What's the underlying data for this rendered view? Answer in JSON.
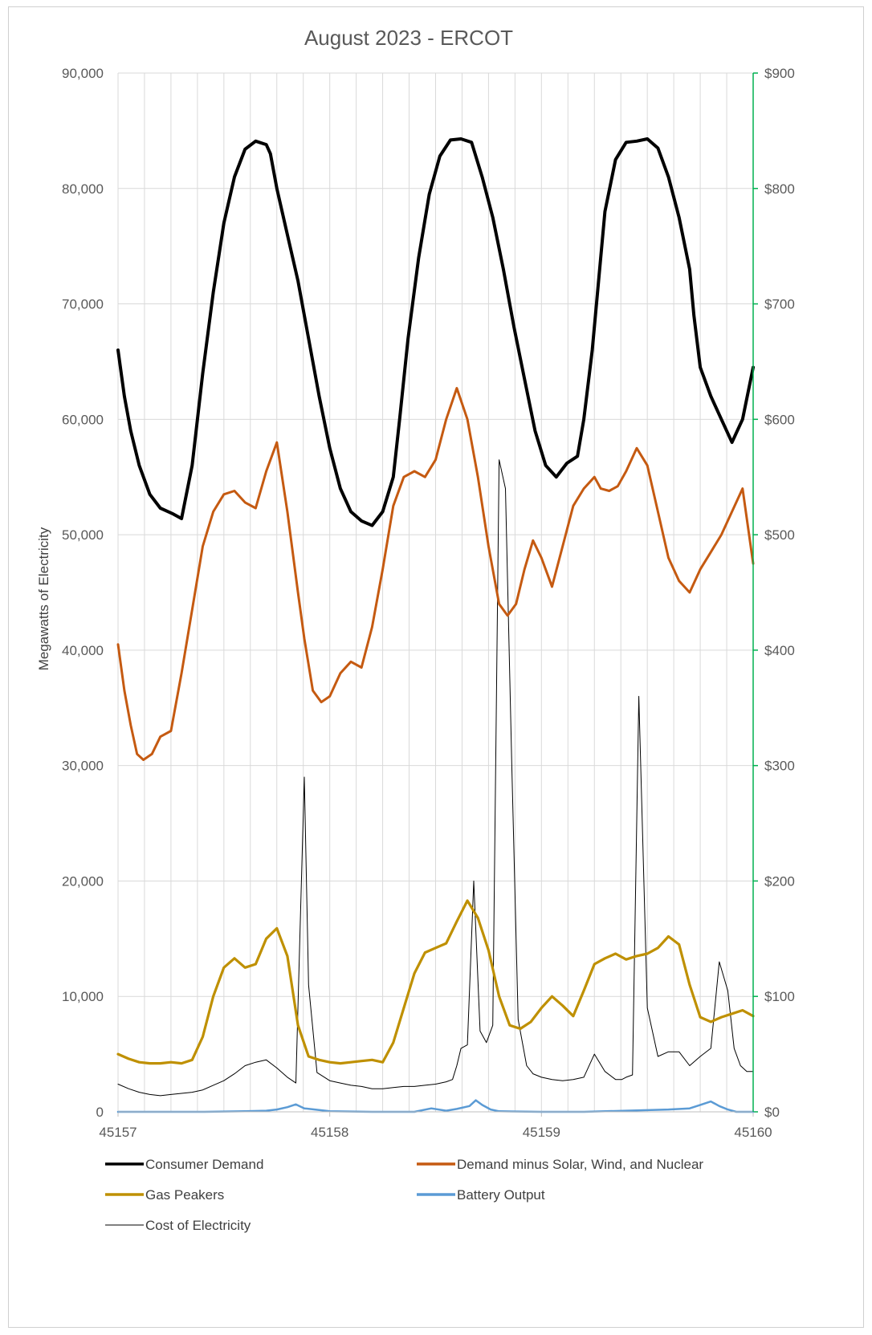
{
  "chart_data": {
    "type": "line",
    "title": "August 2023 - ERCOT",
    "ylabel": "Megawatts of Electricity",
    "y2label": "",
    "xlim": [
      45157,
      45160
    ],
    "ylim": [
      0,
      90000
    ],
    "y2lim": [
      0,
      900
    ],
    "x_ticks": [
      "45157",
      "45158",
      "45159",
      "45160"
    ],
    "y_ticks": [
      "0",
      "10,000",
      "20,000",
      "30,000",
      "40,000",
      "50,000",
      "60,000",
      "70,000",
      "80,000",
      "90,000"
    ],
    "y2_ticks": [
      "$0",
      "$100",
      "$200",
      "$300",
      "$400",
      "$500",
      "$600",
      "$700",
      "$800",
      "$900"
    ],
    "vertical_grid_count": 24,
    "legend_position": "bottom",
    "series": [
      {
        "name": "Consumer Demand",
        "axis": "left",
        "color": "#000000",
        "x": [
          45157,
          45157.03,
          45157.06,
          45157.1,
          45157.15,
          45157.2,
          45157.26,
          45157.3,
          45157.35,
          45157.4,
          45157.45,
          45157.5,
          45157.55,
          45157.6,
          45157.65,
          45157.7,
          45157.72,
          45157.75,
          45157.8,
          45157.85,
          45157.9,
          45157.95,
          45158.0,
          45158.05,
          45158.1,
          45158.15,
          45158.2,
          45158.25,
          45158.3,
          45158.33,
          45158.37,
          45158.42,
          45158.47,
          45158.52,
          45158.57,
          45158.62,
          45158.67,
          45158.72,
          45158.77,
          45158.82,
          45158.87,
          45158.92,
          45158.97,
          45159.02,
          45159.07,
          45159.12,
          45159.17,
          45159.2,
          45159.24,
          45159.27,
          45159.3,
          45159.35,
          45159.4,
          45159.45,
          45159.5,
          45159.55,
          45159.6,
          45159.65,
          45159.7,
          45159.72,
          45159.75,
          45159.8,
          45159.85,
          45159.9,
          45159.95,
          45160.0
        ],
        "y": [
          66000,
          62000,
          59000,
          56000,
          53500,
          52300,
          51800,
          51400,
          56000,
          64000,
          71000,
          77000,
          81000,
          83400,
          84100,
          83800,
          83000,
          80000,
          76000,
          72000,
          67000,
          62000,
          57500,
          54000,
          52000,
          51200,
          50800,
          52000,
          55000,
          60000,
          67000,
          74000,
          79500,
          82800,
          84200,
          84300,
          84000,
          81000,
          77500,
          73000,
          68000,
          63500,
          59000,
          56000,
          55000,
          56200,
          56800,
          60000,
          66000,
          72000,
          78000,
          82500,
          84000,
          84100,
          84300,
          83500,
          81000,
          77500,
          73000,
          69000,
          64500,
          62000,
          60000,
          58000,
          60000,
          64500
        ]
      },
      {
        "name": "Demand minus Solar, Wind, and Nuclear",
        "axis": "left",
        "color": "#C55A11",
        "x": [
          45157,
          45157.03,
          45157.06,
          45157.09,
          45157.12,
          45157.16,
          45157.2,
          45157.25,
          45157.3,
          45157.35,
          45157.4,
          45157.45,
          45157.5,
          45157.55,
          45157.6,
          45157.65,
          45157.7,
          45157.75,
          45157.8,
          45157.85,
          45157.88,
          45157.92,
          45157.96,
          45158.0,
          45158.05,
          45158.1,
          45158.15,
          45158.2,
          45158.25,
          45158.3,
          45158.35,
          45158.4,
          45158.45,
          45158.5,
          45158.55,
          45158.6,
          45158.65,
          45158.7,
          45158.75,
          45158.8,
          45158.84,
          45158.88,
          45158.92,
          45158.96,
          45159.0,
          45159.05,
          45159.1,
          45159.15,
          45159.2,
          45159.25,
          45159.28,
          45159.32,
          45159.36,
          45159.4,
          45159.45,
          45159.5,
          45159.55,
          45159.6,
          45159.65,
          45159.7,
          45159.75,
          45159.8,
          45159.85,
          45159.9,
          45159.95,
          45160.0
        ],
        "y": [
          40500,
          36500,
          33500,
          31000,
          30500,
          31000,
          32500,
          33000,
          38000,
          43500,
          49000,
          52000,
          53500,
          53800,
          52800,
          52300,
          55500,
          58000,
          52000,
          45000,
          41000,
          36500,
          35500,
          36000,
          38000,
          39000,
          38500,
          42000,
          47000,
          52500,
          55000,
          55500,
          55000,
          56500,
          60000,
          62700,
          60000,
          55000,
          49000,
          44000,
          43000,
          44000,
          47000,
          49500,
          48000,
          45500,
          49000,
          52500,
          54000,
          55000,
          54000,
          53800,
          54200,
          55500,
          57500,
          56000,
          52000,
          48000,
          46000,
          45000,
          47000,
          48500,
          50000,
          52000,
          54000,
          47500
        ]
      },
      {
        "name": "Gas Peakers",
        "axis": "left",
        "color": "#BF9000",
        "x": [
          45157,
          45157.05,
          45157.1,
          45157.15,
          45157.2,
          45157.25,
          45157.3,
          45157.35,
          45157.4,
          45157.45,
          45157.5,
          45157.55,
          45157.6,
          45157.65,
          45157.7,
          45157.75,
          45157.8,
          45157.85,
          45157.9,
          45157.95,
          45158.0,
          45158.05,
          45158.1,
          45158.15,
          45158.2,
          45158.25,
          45158.3,
          45158.35,
          45158.4,
          45158.45,
          45158.5,
          45158.55,
          45158.6,
          45158.65,
          45158.7,
          45158.75,
          45158.8,
          45158.85,
          45158.9,
          45158.95,
          45159.0,
          45159.05,
          45159.1,
          45159.15,
          45159.2,
          45159.25,
          45159.3,
          45159.35,
          45159.4,
          45159.45,
          45159.5,
          45159.55,
          45159.6,
          45159.65,
          45159.7,
          45159.75,
          45159.8,
          45159.85,
          45159.9,
          45159.95,
          45160.0
        ],
        "y": [
          5000,
          4600,
          4300,
          4200,
          4200,
          4300,
          4200,
          4500,
          6500,
          10000,
          12500,
          13300,
          12500,
          12800,
          15000,
          15900,
          13500,
          7500,
          4800,
          4500,
          4300,
          4200,
          4300,
          4400,
          4500,
          4300,
          6000,
          9000,
          12000,
          13800,
          14200,
          14600,
          16500,
          18300,
          16800,
          14000,
          10000,
          7500,
          7200,
          7800,
          9000,
          10000,
          9200,
          8300,
          10500,
          12800,
          13300,
          13700,
          13200,
          13500,
          13700,
          14200,
          15200,
          14500,
          11000,
          8200,
          7800,
          8200,
          8500,
          8800,
          8300
        ]
      },
      {
        "name": "Battery Output",
        "axis": "left",
        "color": "#5B9BD5",
        "x": [
          45157,
          45157.2,
          45157.4,
          45157.6,
          45157.7,
          45157.75,
          45157.8,
          45157.84,
          45157.88,
          45158.0,
          45158.2,
          45158.4,
          45158.48,
          45158.55,
          45158.6,
          45158.66,
          45158.69,
          45158.72,
          45158.76,
          45158.8,
          45159.0,
          45159.2,
          45159.4,
          45159.6,
          45159.7,
          45159.75,
          45159.8,
          45159.84,
          45159.88,
          45159.92,
          45159.96,
          45160.0
        ],
        "y": [
          0,
          0,
          0,
          50,
          100,
          200,
          400,
          650,
          300,
          50,
          0,
          0,
          300,
          100,
          250,
          500,
          1000,
          600,
          200,
          50,
          0,
          0,
          100,
          200,
          300,
          600,
          900,
          500,
          200,
          0,
          0,
          0
        ]
      },
      {
        "name": "Cost of Electricity",
        "axis": "right",
        "color": "#000000",
        "x": [
          45157,
          45157.05,
          45157.1,
          45157.15,
          45157.2,
          45157.25,
          45157.3,
          45157.35,
          45157.4,
          45157.45,
          45157.5,
          45157.55,
          45157.6,
          45157.65,
          45157.7,
          45157.75,
          45157.8,
          45157.84,
          45157.86,
          45157.88,
          45157.9,
          45157.94,
          45158.0,
          45158.05,
          45158.1,
          45158.15,
          45158.2,
          45158.25,
          45158.3,
          45158.35,
          45158.4,
          45158.45,
          45158.5,
          45158.55,
          45158.58,
          45158.6,
          45158.62,
          45158.65,
          45158.68,
          45158.71,
          45158.74,
          45158.77,
          45158.8,
          45158.83,
          45158.86,
          45158.89,
          45158.93,
          45158.96,
          45159.0,
          45159.05,
          45159.1,
          45159.15,
          45159.2,
          45159.25,
          45159.3,
          45159.35,
          45159.38,
          45159.4,
          45159.43,
          45159.46,
          45159.5,
          45159.55,
          45159.6,
          45159.65,
          45159.7,
          45159.75,
          45159.8,
          45159.84,
          45159.88,
          45159.91,
          45159.94,
          45159.97,
          45160.0
        ],
        "y": [
          24,
          20,
          17,
          15,
          14,
          15,
          16,
          17,
          19,
          23,
          27,
          33,
          40,
          43,
          45,
          38,
          30,
          25,
          160,
          290,
          110,
          34,
          27,
          25,
          23,
          22,
          20,
          20,
          21,
          22,
          22,
          23,
          24,
          26,
          28,
          40,
          55,
          58,
          200,
          70,
          60,
          75,
          565,
          540,
          300,
          80,
          40,
          33,
          30,
          28,
          27,
          28,
          30,
          50,
          35,
          28,
          28,
          30,
          32,
          360,
          90,
          48,
          52,
          52,
          40,
          48,
          55,
          130,
          105,
          55,
          40,
          35,
          35
        ]
      }
    ]
  }
}
